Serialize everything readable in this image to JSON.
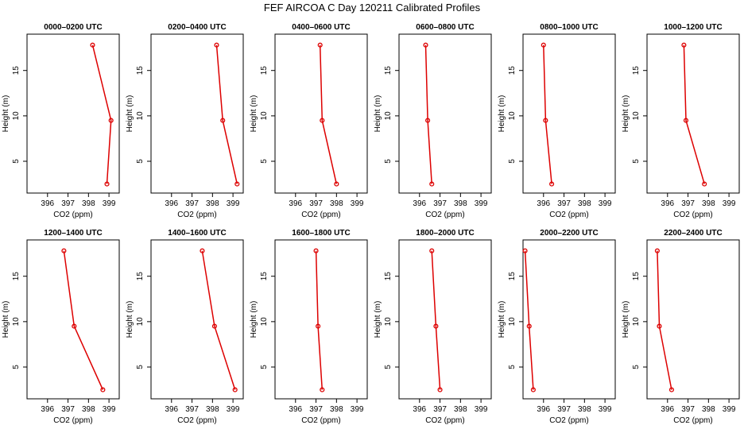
{
  "title": "FEF AIRCOA C  Day 120211  Calibrated Profiles",
  "colors": {
    "line": "#dd0000",
    "axis": "#000000"
  },
  "chart_data": {
    "type": "line",
    "xlabel": "CO2 (ppm)",
    "ylabel": "Height (m)",
    "xlim": [
      395,
      399.5
    ],
    "ylim": [
      1.5,
      19
    ],
    "xticks": [
      396,
      397,
      398,
      399
    ],
    "yticks": [
      5,
      10,
      15
    ],
    "xtick_labels": [
      "396",
      "397",
      "398",
      "399"
    ],
    "ytick_labels": [
      "5",
      "10",
      "15"
    ],
    "heights": [
      2.5,
      9.5,
      17.8
    ],
    "panels": [
      {
        "title": "0000–0200 UTC",
        "co2": [
          398.9,
          399.1,
          398.2
        ]
      },
      {
        "title": "0200–0400 UTC",
        "co2": [
          399.2,
          398.5,
          398.2
        ]
      },
      {
        "title": "0400–0600 UTC",
        "co2": [
          398.0,
          397.3,
          397.2
        ]
      },
      {
        "title": "0600–0800 UTC",
        "co2": [
          396.6,
          396.4,
          396.3
        ]
      },
      {
        "title": "0800–1000 UTC",
        "co2": [
          396.4,
          396.1,
          396.0
        ]
      },
      {
        "title": "1000–1200 UTC",
        "co2": [
          397.8,
          396.9,
          396.8
        ]
      },
      {
        "title": "1200–1400 UTC",
        "co2": [
          398.7,
          397.3,
          396.8
        ]
      },
      {
        "title": "1400–1600 UTC",
        "co2": [
          399.1,
          398.1,
          397.5
        ]
      },
      {
        "title": "1600–1800 UTC",
        "co2": [
          397.3,
          397.1,
          397.0
        ]
      },
      {
        "title": "1800–2000 UTC",
        "co2": [
          397.0,
          396.8,
          396.6
        ]
      },
      {
        "title": "2000–2200 UTC",
        "co2": [
          395.5,
          395.3,
          395.1
        ]
      },
      {
        "title": "2200–2400 UTC",
        "co2": [
          396.2,
          395.6,
          395.5
        ]
      }
    ]
  }
}
